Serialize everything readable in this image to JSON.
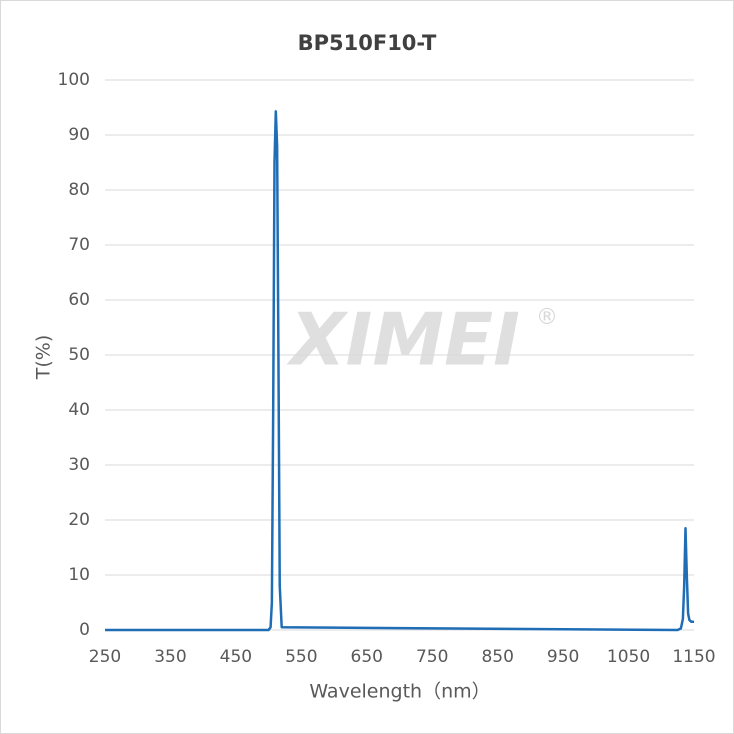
{
  "chart_data": {
    "type": "line",
    "title": "BP510F10-T",
    "xlabel": "Wavelength（nm）",
    "ylabel": "T(%)",
    "watermark": "XIMEI",
    "watermark_symbol": "®",
    "x": [
      250,
      500,
      503,
      505,
      507,
      509,
      511,
      513,
      515,
      517,
      520,
      1125,
      1130,
      1133,
      1135,
      1137,
      1139,
      1141,
      1143,
      1146,
      1150
    ],
    "series": [
      {
        "name": "BP510F10-T",
        "color": "#1f6db5",
        "values": [
          0,
          0,
          0.5,
          5,
          40,
          85,
          94.3,
          88,
          50,
          8,
          0.5,
          0,
          0.3,
          2,
          8,
          18.5,
          10,
          3,
          1.8,
          1.5,
          1.5
        ]
      }
    ],
    "xlim": [
      250,
      1150
    ],
    "xticks": [
      250,
      350,
      450,
      550,
      650,
      750,
      850,
      950,
      1050,
      1150
    ],
    "ylim": [
      0,
      100
    ],
    "yticks": [
      0,
      10,
      20,
      30,
      40,
      50,
      60,
      70,
      80,
      90,
      100
    ],
    "grid": true
  }
}
